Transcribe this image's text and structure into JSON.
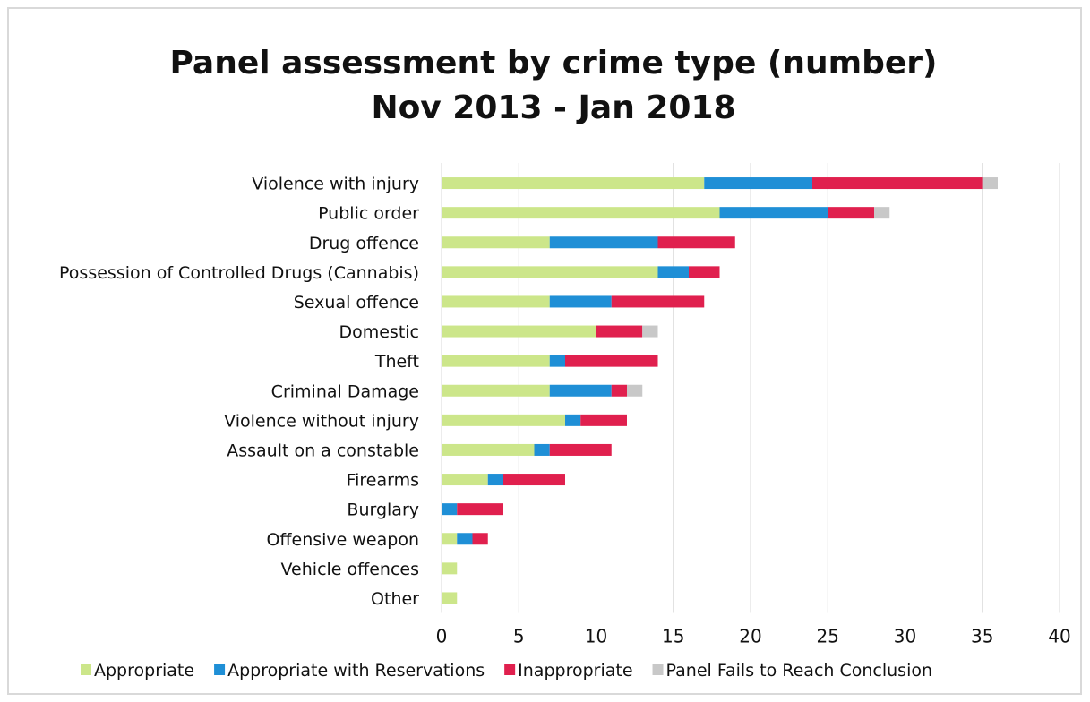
{
  "chart_data": {
    "type": "bar",
    "orientation": "horizontal",
    "stacked": true,
    "title": "Panel assessment by crime type (number)",
    "subtitle": "Nov 2013 - Jan 2018",
    "categories": [
      "Violence with injury",
      "Public order",
      "Drug offence",
      "Possession of Controlled Drugs (Cannabis)",
      "Sexual offence",
      "Domestic",
      "Theft",
      "Criminal Damage",
      "Violence without injury",
      "Assault on a constable",
      "Firearms",
      "Burglary",
      "Offensive weapon",
      "Vehicle offences",
      "Other"
    ],
    "series": [
      {
        "name": "Appropriate",
        "color": "#cce68a",
        "values": [
          17,
          18,
          7,
          14,
          7,
          10,
          7,
          7,
          8,
          6,
          3,
          0,
          1,
          1,
          1
        ]
      },
      {
        "name": "Appropriate with Reservations",
        "color": "#1f8fd6",
        "values": [
          7,
          7,
          7,
          2,
          4,
          0,
          1,
          4,
          1,
          1,
          1,
          1,
          1,
          0,
          0
        ]
      },
      {
        "name": "Inappropriate",
        "color": "#e0204e",
        "values": [
          11,
          3,
          5,
          2,
          6,
          3,
          6,
          1,
          3,
          4,
          4,
          3,
          1,
          0,
          0
        ]
      },
      {
        "name": "Panel Fails to Reach Conclusion",
        "color": "#c8c8c8",
        "values": [
          1,
          1,
          0,
          0,
          0,
          1,
          0,
          1,
          0,
          0,
          0,
          0,
          0,
          0,
          0
        ]
      }
    ],
    "xlim": [
      0,
      40
    ],
    "xticks": [
      0,
      5,
      10,
      15,
      20,
      25,
      30,
      35,
      40
    ],
    "grid": true,
    "legend_position": "bottom"
  }
}
